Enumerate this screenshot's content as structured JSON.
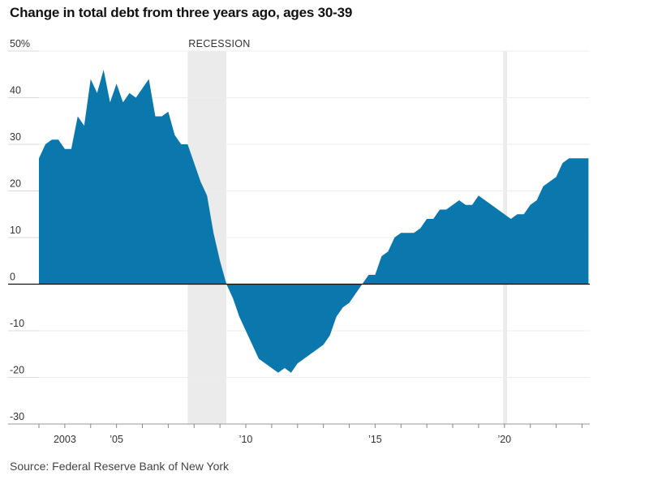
{
  "title": "Change in total debt from three years ago, ages 30-39",
  "source": "Source: Federal Reserve Bank of New York",
  "colors": {
    "area": "#0a78ac",
    "recession": "#ebebeb",
    "grid": "#d9d9d9",
    "axis": "#111111"
  },
  "chart_data": {
    "type": "area",
    "title": "Change in total debt from three years ago, ages 30-39",
    "xlabel": "",
    "ylabel": "",
    "ylim": [
      -30,
      50
    ],
    "xlim": [
      2002.0,
      2023.3
    ],
    "grid": true,
    "y_ticks": [
      {
        "value": 50,
        "label": "50%"
      },
      {
        "value": 40,
        "label": "40"
      },
      {
        "value": 30,
        "label": "30"
      },
      {
        "value": 20,
        "label": "20"
      },
      {
        "value": 10,
        "label": "10"
      },
      {
        "value": 0,
        "label": "0"
      },
      {
        "value": -10,
        "label": "-10"
      },
      {
        "value": -20,
        "label": "-20"
      },
      {
        "value": -30,
        "label": "-30"
      }
    ],
    "x_ticks": [
      {
        "value": 2003,
        "label": "2003"
      },
      {
        "value": 2005,
        "label": "’05"
      },
      {
        "value": 2010,
        "label": "’10"
      },
      {
        "value": 2015,
        "label": "’15"
      },
      {
        "value": 2020,
        "label": "’20"
      }
    ],
    "recessions": [
      {
        "start": 2007.75,
        "end": 2009.25,
        "label": "RECESSION"
      },
      {
        "start": 2019.95,
        "end": 2020.1,
        "label": ""
      }
    ],
    "series": [
      {
        "x": [
          2002.0,
          2002.25,
          2002.5,
          2002.75,
          2003.0,
          2003.25,
          2003.5,
          2003.75,
          2004.0,
          2004.25,
          2004.5,
          2004.75,
          2005.0,
          2005.25,
          2005.5,
          2005.75,
          2006.0,
          2006.25,
          2006.5,
          2006.75,
          2007.0,
          2007.25,
          2007.5,
          2007.75,
          2008.0,
          2008.25,
          2008.5,
          2008.75,
          2009.0,
          2009.25,
          2009.5,
          2009.75,
          2010.0,
          2010.25,
          2010.5,
          2010.75,
          2011.0,
          2011.25,
          2011.5,
          2011.75,
          2012.0,
          2012.25,
          2012.5,
          2012.75,
          2013.0,
          2013.25,
          2013.5,
          2013.75,
          2014.0,
          2014.25,
          2014.5,
          2014.75,
          2015.0,
          2015.25,
          2015.5,
          2015.75,
          2016.0,
          2016.25,
          2016.5,
          2016.75,
          2017.0,
          2017.25,
          2017.5,
          2017.75,
          2018.0,
          2018.25,
          2018.5,
          2018.75,
          2019.0,
          2019.25,
          2019.5,
          2019.75,
          2020.0,
          2020.25,
          2020.5,
          2020.75,
          2021.0,
          2021.25,
          2021.5,
          2021.75,
          2022.0,
          2022.25,
          2022.5,
          2022.75,
          2023.0,
          2023.25
        ],
        "values": [
          27,
          30,
          31,
          31,
          29,
          29,
          36,
          34,
          44,
          41,
          46,
          39,
          43,
          39,
          41,
          40,
          42,
          44,
          36,
          36,
          37,
          32,
          30,
          30,
          26,
          22,
          19,
          11,
          5,
          0,
          -3,
          -7,
          -10,
          -13,
          -16,
          -17,
          -18,
          -19,
          -18,
          -19,
          -17,
          -16,
          -15,
          -14,
          -13,
          -11,
          -7,
          -5,
          -4,
          -2,
          0,
          2,
          2,
          6,
          7,
          10,
          11,
          11,
          11,
          12,
          14,
          14,
          16,
          16,
          17,
          18,
          17,
          17,
          19,
          18,
          17,
          16,
          15,
          14,
          15,
          15,
          17,
          18,
          21,
          22,
          23,
          26,
          27,
          27,
          27,
          27
        ]
      }
    ]
  }
}
